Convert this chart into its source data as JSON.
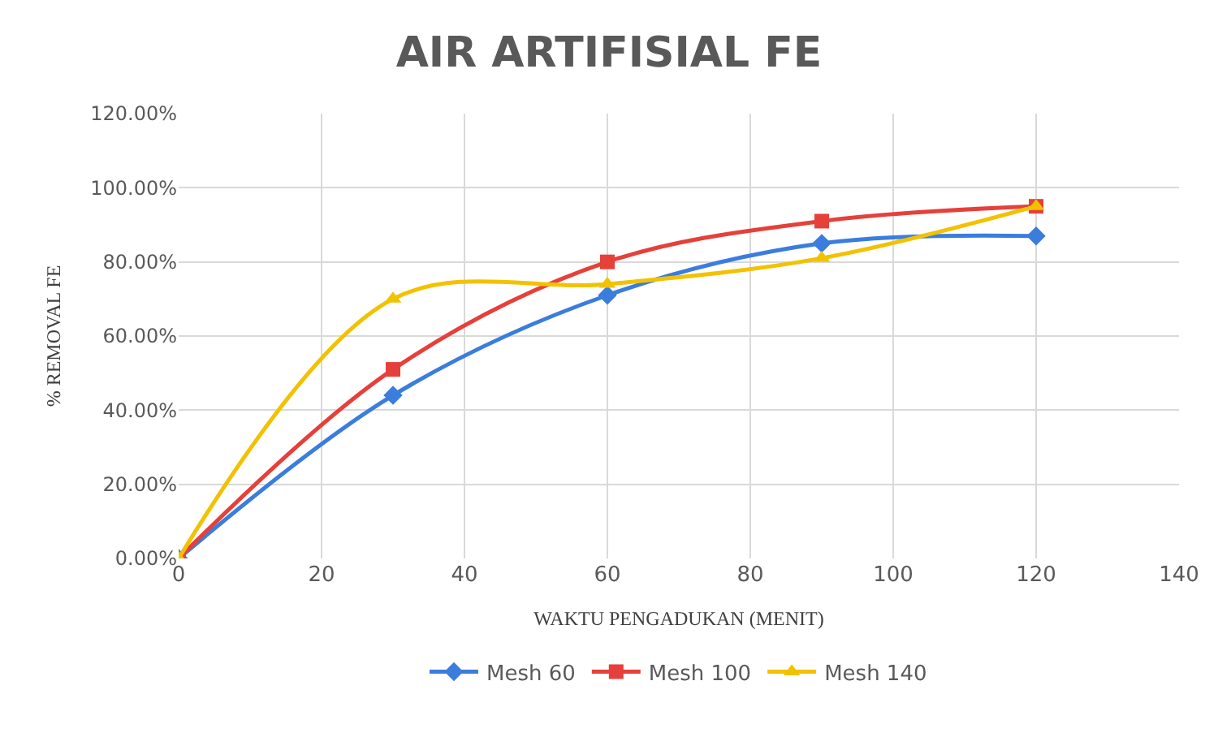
{
  "chart_data": {
    "type": "line",
    "title": "AIR ARTIFISIAL FE",
    "xlabel": "WAKTU PENGADUKAN (MENIT)",
    "ylabel": "% REMOVAL FE",
    "x": [
      0,
      30,
      60,
      90,
      120
    ],
    "series": [
      {
        "name": "Mesh 60",
        "color": "#3b7ddd",
        "marker": "diamond",
        "values": [
          0,
          44,
          71,
          85,
          87
        ]
      },
      {
        "name": "Mesh 100",
        "color": "#e5403a",
        "marker": "square",
        "values": [
          0,
          51,
          80,
          91,
          95
        ]
      },
      {
        "name": "Mesh 140",
        "color": "#f2c200",
        "marker": "triangle",
        "values": [
          0,
          70,
          74,
          81,
          95
        ]
      }
    ],
    "xlim": [
      0,
      140
    ],
    "xticks": [
      0,
      20,
      40,
      60,
      80,
      100,
      120,
      140
    ],
    "ylim": [
      0,
      120
    ],
    "yticks": [
      {
        "value": 0,
        "label": "0.00%"
      },
      {
        "value": 20,
        "label": "20.00%"
      },
      {
        "value": 40,
        "label": "40.00%"
      },
      {
        "value": 60,
        "label": "60.00%"
      },
      {
        "value": 80,
        "label": "80.00%"
      },
      {
        "value": 100,
        "label": "100.00%"
      },
      {
        "value": 120,
        "label": "120.00%"
      }
    ],
    "grid": true,
    "legend": "bottom",
    "line_style": "solid"
  }
}
